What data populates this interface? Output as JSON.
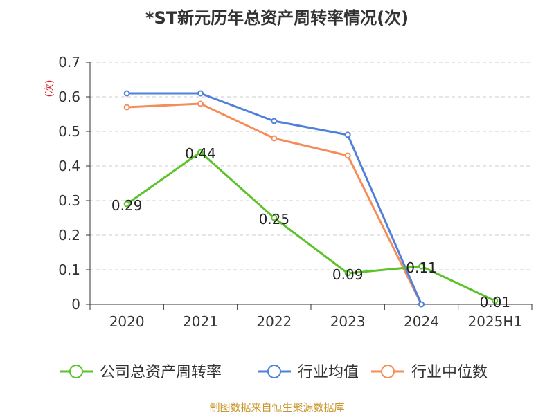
{
  "chart_data": {
    "type": "line",
    "title": "*ST新元历年总资产周转率情况(次)",
    "ylabel": "(次)",
    "xlabel": "",
    "categories": [
      "2020",
      "2021",
      "2022",
      "2023",
      "2024",
      "2025H1"
    ],
    "ylim": [
      0,
      0.7
    ],
    "yticks": [
      "0",
      "0.1",
      "0.2",
      "0.3",
      "0.4",
      "0.5",
      "0.6",
      "0.7"
    ],
    "grid": true,
    "legend_position": "bottom",
    "series": [
      {
        "name": "公司总资产周转率",
        "color": "#5cc22a",
        "values": [
          0.29,
          0.44,
          0.25,
          0.09,
          0.11,
          0.01
        ],
        "labels": [
          "0.29",
          "0.44",
          "0.25",
          "0.09",
          "0.11",
          "0.01"
        ]
      },
      {
        "name": "行业均值",
        "color": "#4f81d9",
        "values": [
          0.61,
          0.61,
          0.53,
          0.49,
          0,
          null
        ]
      },
      {
        "name": "行业中位数",
        "color": "#f58d5a",
        "values": [
          0.57,
          0.58,
          0.48,
          0.43,
          0,
          null
        ]
      }
    ]
  },
  "source_note": "制图数据来自恒生聚源数据库"
}
